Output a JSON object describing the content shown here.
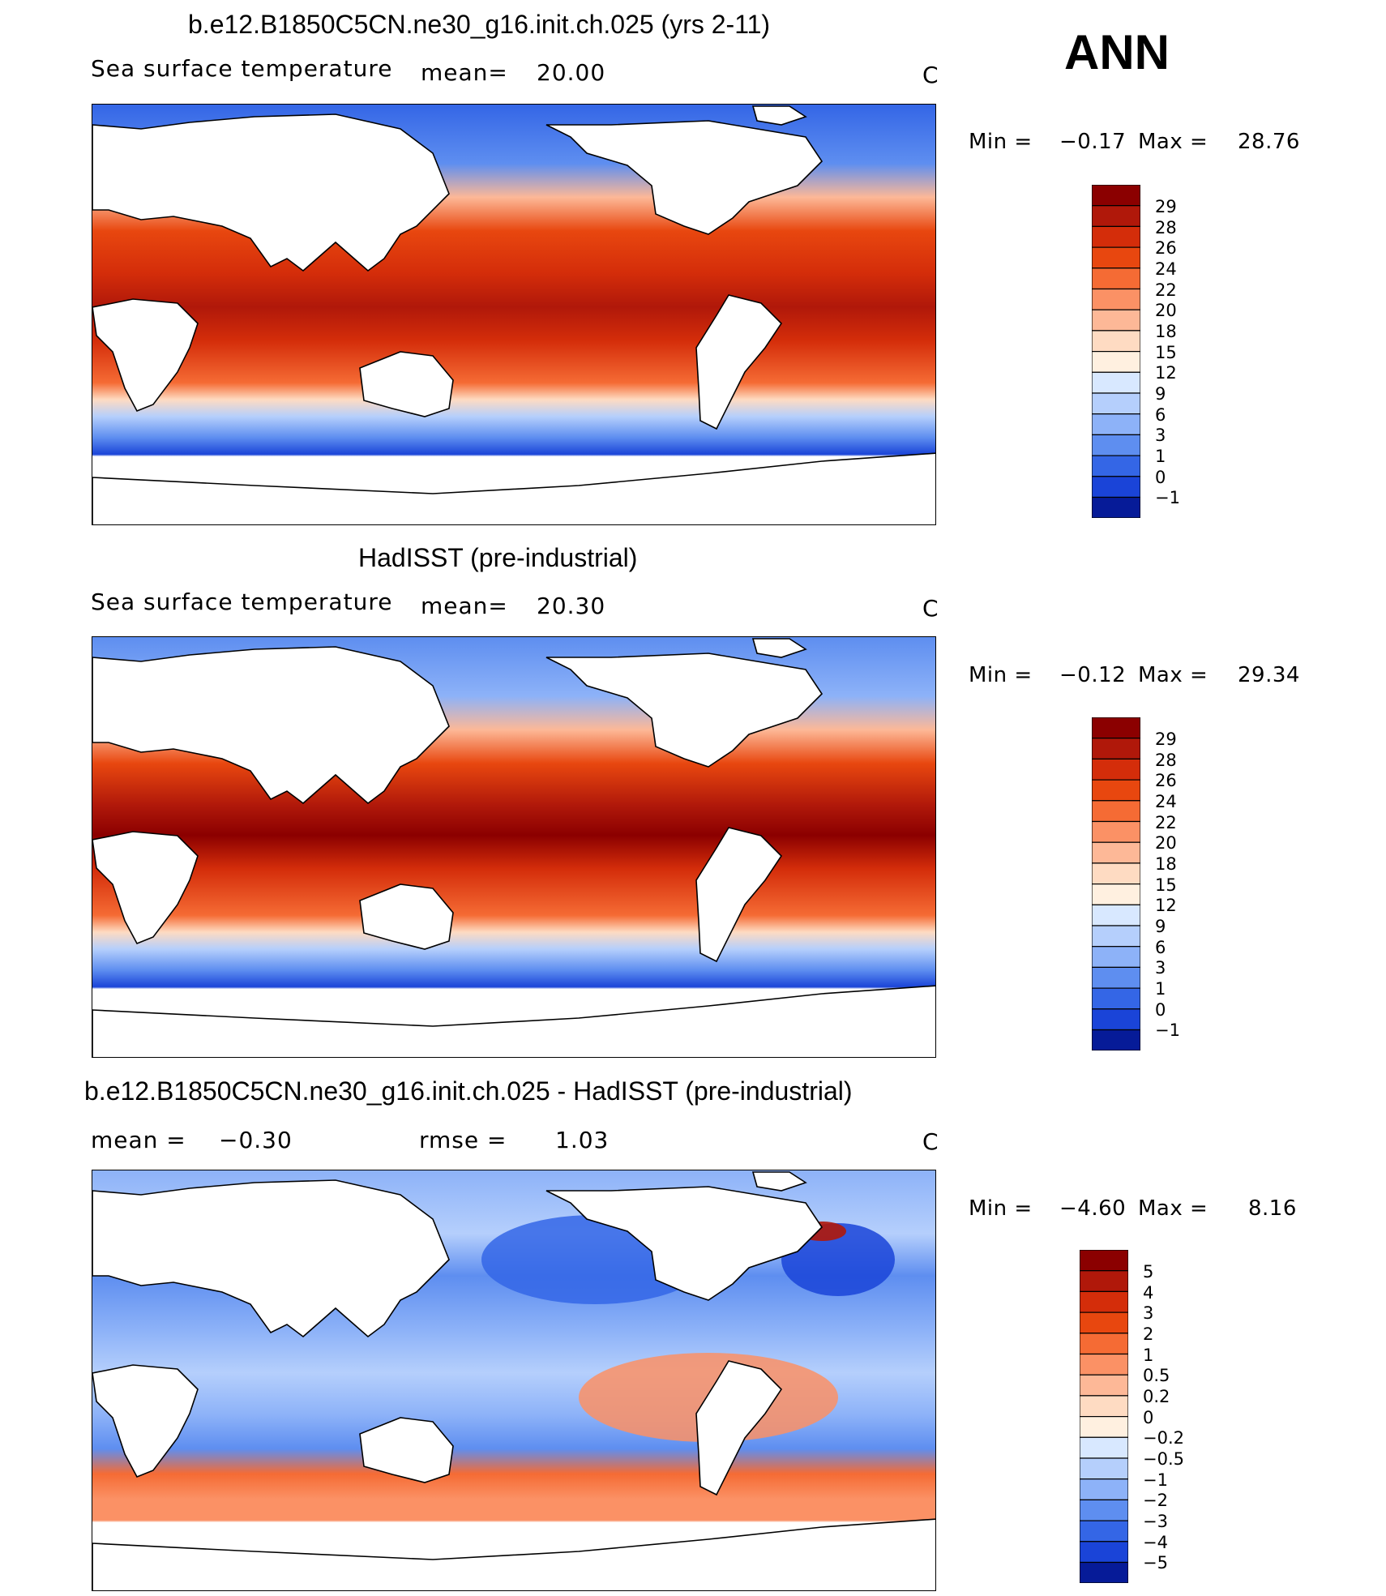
{
  "header": {
    "season": "ANN"
  },
  "panels": [
    {
      "id": "model",
      "title": "b.e12.B1850C5CN.ne30_g16.init.ch.025 (yrs 2-11)",
      "left_label": "Sea surface temperature",
      "stat_label": "mean=",
      "stat_value": "20.00",
      "units": "C",
      "min_label": "Min =",
      "min_value": "−0.17",
      "max_label": "Max =",
      "max_value": "28.76",
      "colorbar": {
        "labels": [
          "29",
          "28",
          "26",
          "24",
          "22",
          "20",
          "18",
          "15",
          "12",
          "9",
          "6",
          "3",
          "1",
          "0",
          "−1"
        ],
        "colors": [
          "#8b0000",
          "#b0180a",
          "#d42d0a",
          "#e8470f",
          "#f56b34",
          "#fb9165",
          "#fdb897",
          "#fedbc2",
          "#fff0e0",
          "#d8e8ff",
          "#b5cffc",
          "#8db2f8",
          "#5e8ef0",
          "#3466e6",
          "#1a44d8",
          "#0c2bbd",
          "#061b98"
        ]
      }
    },
    {
      "id": "obs",
      "title": "HadISST (pre-industrial)",
      "left_label": "Sea surface temperature",
      "stat_label": "mean=",
      "stat_value": "20.30",
      "units": "C",
      "min_label": "Min =",
      "min_value": "−0.12",
      "max_label": "Max =",
      "max_value": "29.34",
      "colorbar": {
        "labels": [
          "29",
          "28",
          "26",
          "24",
          "22",
          "20",
          "18",
          "15",
          "12",
          "9",
          "6",
          "3",
          "1",
          "0",
          "−1"
        ],
        "colors": [
          "#8b0000",
          "#b0180a",
          "#d42d0a",
          "#e8470f",
          "#f56b34",
          "#fb9165",
          "#fdb897",
          "#fedbc2",
          "#fff0e0",
          "#d8e8ff",
          "#b5cffc",
          "#8db2f8",
          "#5e8ef0",
          "#3466e6",
          "#1a44d8",
          "#0c2bbd",
          "#061b98"
        ]
      }
    },
    {
      "id": "diff",
      "title": "b.e12.B1850C5CN.ne30_g16.init.ch.025 - HadISST (pre-industrial)",
      "left_label": "mean =",
      "left_value": "−0.30",
      "stat_label": "rmse =",
      "stat_value": "1.03",
      "units": "C",
      "min_label": "Min =",
      "min_value": "−4.60",
      "max_label": "Max =",
      "max_value": "8.16",
      "colorbar": {
        "labels": [
          "5",
          "4",
          "3",
          "2",
          "1",
          "0.5",
          "0.2",
          "0",
          "−0.2",
          "−0.5",
          "−1",
          "−2",
          "−3",
          "−4",
          "−5"
        ],
        "colors": [
          "#8b0000",
          "#b0180a",
          "#d42d0a",
          "#e8470f",
          "#f56b34",
          "#fb9165",
          "#fdb897",
          "#fedbc2",
          "#fff0e0",
          "#d8e8ff",
          "#b5cffc",
          "#8db2f8",
          "#5e8ef0",
          "#3466e6",
          "#1a44d8",
          "#0c2bbd",
          "#061b98"
        ]
      }
    }
  ]
}
